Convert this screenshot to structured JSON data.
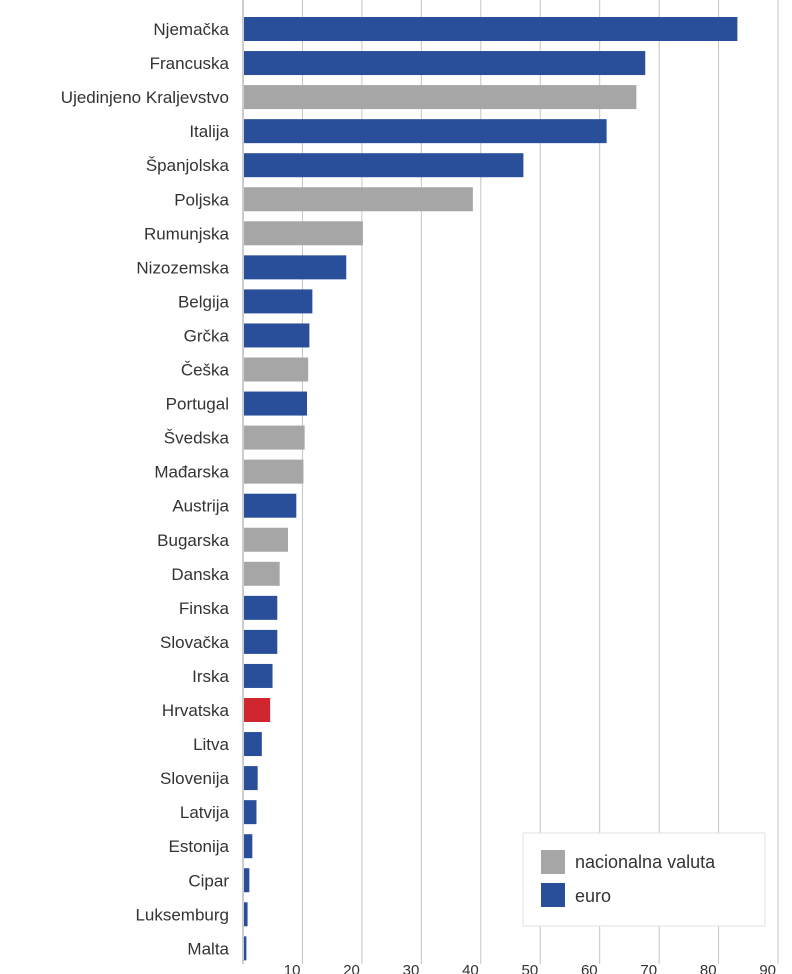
{
  "chart_data": {
    "type": "bar",
    "orientation": "horizontal",
    "categories": [
      "Njemačka",
      "Francuska",
      "Ujedinjeno Kraljevstvo",
      "Italija",
      "Španjolska",
      "Poljska",
      "Rumunjska",
      "Nizozemska",
      "Belgija",
      "Grčka",
      "Češka",
      "Portugal",
      "Švedska",
      "Mađarska",
      "Austrija",
      "Bugarska",
      "Danska",
      "Finska",
      "Slovačka",
      "Irska",
      "Hrvatska",
      "Litva",
      "Slovenija",
      "Latvija",
      "Estonija",
      "Cipar",
      "Luksemburg",
      "Malta"
    ],
    "values": [
      83,
      67.5,
      66,
      61,
      47,
      38.5,
      20,
      17.2,
      11.5,
      11,
      10.8,
      10.6,
      10.2,
      10,
      8.8,
      7.4,
      6,
      5.6,
      5.6,
      4.8,
      4.4,
      3,
      2.3,
      2.1,
      1.4,
      0.9,
      0.6,
      0.4
    ],
    "groups": [
      "euro",
      "euro",
      "nacionalna valuta",
      "euro",
      "euro",
      "nacionalna valuta",
      "nacionalna valuta",
      "euro",
      "euro",
      "euro",
      "nacionalna valuta",
      "euro",
      "nacionalna valuta",
      "nacionalna valuta",
      "euro",
      "nacionalna valuta",
      "nacionalna valuta",
      "euro",
      "euro",
      "euro",
      "highlight",
      "euro",
      "euro",
      "euro",
      "euro",
      "euro",
      "euro",
      "euro"
    ],
    "xticks": [
      10,
      20,
      30,
      40,
      50,
      60,
      70,
      80,
      90
    ],
    "xlim": [
      0,
      90
    ],
    "grid": true,
    "legend": {
      "placement": "bottom-right",
      "entries": [
        {
          "label": "nacionalna valuta",
          "color": "#a6a6a6"
        },
        {
          "label": "euro",
          "color": "#2a4f9a"
        }
      ]
    },
    "colors": {
      "euro": "#2a4f9a",
      "nacionalna valuta": "#a6a6a6",
      "highlight": "#d0262f",
      "grid": "#c4c4c4"
    }
  }
}
